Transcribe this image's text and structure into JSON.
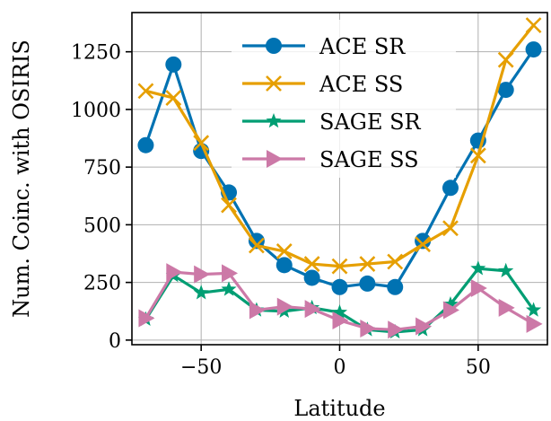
{
  "chart_data": {
    "type": "line",
    "title": "",
    "xlabel": "Latitude",
    "ylabel": "Num. Coinc. with OSIRIS",
    "xlim": [
      -75,
      75
    ],
    "ylim": [
      -20,
      1420
    ],
    "xticks": [
      -50,
      0,
      50
    ],
    "xtick_labels": [
      "−50",
      "0",
      "50"
    ],
    "yticks": [
      0,
      250,
      500,
      750,
      1000,
      1250
    ],
    "ytick_labels": [
      "0",
      "250",
      "500",
      "750",
      "1000",
      "1250"
    ],
    "grid": true,
    "legend_position": "top-center",
    "series": [
      {
        "name": "ACE SR",
        "color": "#0072b2",
        "marker": "circle",
        "x": [
          -70,
          -60,
          -50,
          -40,
          -30,
          -20,
          -10,
          0,
          10,
          20,
          30,
          40,
          50,
          60,
          70
        ],
        "y": [
          845,
          1195,
          820,
          640,
          430,
          325,
          270,
          230,
          245,
          230,
          430,
          660,
          865,
          1085,
          1260
        ]
      },
      {
        "name": "ACE SS",
        "color": "#e69f00",
        "marker": "x",
        "x": [
          -70,
          -60,
          -50,
          -40,
          -30,
          -20,
          -10,
          0,
          10,
          20,
          30,
          40,
          50,
          60,
          70
        ],
        "y": [
          1080,
          1050,
          855,
          585,
          410,
          385,
          330,
          320,
          330,
          340,
          415,
          485,
          800,
          1215,
          1365
        ]
      },
      {
        "name": "SAGE SR",
        "color": "#009e73",
        "marker": "star",
        "x": [
          -70,
          -60,
          -50,
          -40,
          -30,
          -20,
          -10,
          0,
          10,
          20,
          30,
          40,
          50,
          60,
          70
        ],
        "y": [
          90,
          280,
          205,
          220,
          130,
          125,
          140,
          120,
          45,
          35,
          45,
          155,
          310,
          300,
          130
        ]
      },
      {
        "name": "SAGE SS",
        "color": "#cc79a7",
        "marker": "triangle-right",
        "x": [
          -70,
          -60,
          -50,
          -40,
          -30,
          -20,
          -10,
          0,
          10,
          20,
          30,
          40,
          50,
          60,
          70
        ],
        "y": [
          95,
          295,
          285,
          290,
          130,
          145,
          135,
          85,
          50,
          45,
          60,
          130,
          225,
          140,
          70
        ]
      }
    ]
  }
}
